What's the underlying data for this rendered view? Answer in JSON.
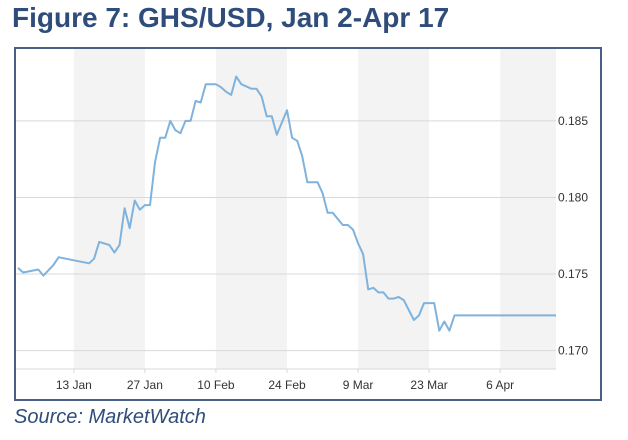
{
  "figure": {
    "title": "Figure 7: GHS/USD, Jan 2-Apr 17",
    "source": "Source: MarketWatch"
  },
  "colors": {
    "title": "#2f4d7a",
    "frame": "#4a5f86",
    "line": "#7fb3dd",
    "band": "#f3f3f3",
    "grid": "#d8d8d8",
    "tick_text": "#333333"
  },
  "chart_data": {
    "type": "line",
    "title": "",
    "xlabel": "",
    "ylabel": "",
    "x_ticks": [
      "13 Jan",
      "27 Jan",
      "10 Feb",
      "24 Feb",
      "9 Mar",
      "23 Mar",
      "6 Apr"
    ],
    "y_ticks": [
      0.17,
      0.175,
      0.18,
      0.185
    ],
    "ylim": [
      0.1688,
      0.1895
    ],
    "xlim": [
      "2020-01-02",
      "2020-04-17"
    ],
    "grid": true,
    "legend": "none",
    "series": [
      {
        "x": [
          "2020-01-02",
          "2020-01-03",
          "2020-01-06",
          "2020-01-07",
          "2020-01-09",
          "2020-01-10",
          "2020-01-13",
          "2020-01-16",
          "2020-01-17",
          "2020-01-18",
          "2020-01-20",
          "2020-01-21",
          "2020-01-22",
          "2020-01-23",
          "2020-01-24",
          "2020-01-25",
          "2020-01-26",
          "2020-01-27",
          "2020-01-28",
          "2020-01-29",
          "2020-01-30",
          "2020-01-31",
          "2020-02-01",
          "2020-02-02",
          "2020-02-03",
          "2020-02-04",
          "2020-02-05",
          "2020-02-06",
          "2020-02-07",
          "2020-02-08",
          "2020-02-10",
          "2020-02-11",
          "2020-02-12",
          "2020-02-13",
          "2020-02-14",
          "2020-02-15",
          "2020-02-17",
          "2020-02-18",
          "2020-02-19",
          "2020-02-20",
          "2020-02-21",
          "2020-02-22",
          "2020-02-24",
          "2020-02-25",
          "2020-02-26",
          "2020-02-27",
          "2020-02-28",
          "2020-03-01",
          "2020-03-02",
          "2020-03-03",
          "2020-03-04",
          "2020-03-06",
          "2020-03-07",
          "2020-03-08",
          "2020-03-09",
          "2020-03-10",
          "2020-03-11",
          "2020-03-12",
          "2020-03-13",
          "2020-03-14",
          "2020-03-15",
          "2020-03-16",
          "2020-03-17",
          "2020-03-18",
          "2020-03-20",
          "2020-03-21",
          "2020-03-22",
          "2020-03-23",
          "2020-03-24",
          "2020-03-25",
          "2020-03-26",
          "2020-03-27",
          "2020-03-28",
          "2020-03-29",
          "2020-03-31",
          "2020-04-01",
          "2020-04-02",
          "2020-04-03",
          "2020-04-04",
          "2020-04-06",
          "2020-04-07",
          "2020-04-08",
          "2020-04-10",
          "2020-04-11",
          "2020-04-12",
          "2020-04-13",
          "2020-04-14",
          "2020-04-15",
          "2020-04-16",
          "2020-04-17"
        ],
        "y": [
          0.1754,
          0.1751,
          0.1753,
          0.1749,
          0.1756,
          0.1761,
          0.1759,
          0.1757,
          0.176,
          0.1771,
          0.1769,
          0.1764,
          0.1769,
          0.1793,
          0.178,
          0.1798,
          0.1792,
          0.1795,
          0.1795,
          0.1823,
          0.1839,
          0.1839,
          0.185,
          0.1844,
          0.1842,
          0.185,
          0.185,
          0.1863,
          0.1862,
          0.1874,
          0.1874,
          0.1872,
          0.1869,
          0.1867,
          0.1879,
          0.1874,
          0.1871,
          0.1871,
          0.1866,
          0.1853,
          0.1853,
          0.1841,
          0.1857,
          0.1839,
          0.1837,
          0.1827,
          0.181,
          0.181,
          0.1803,
          0.179,
          0.179,
          0.1782,
          0.1782,
          0.1779,
          0.177,
          0.1763,
          0.174,
          0.1741,
          0.1738,
          0.1738,
          0.1734,
          0.1734,
          0.1735,
          0.1733,
          0.172,
          0.1723,
          0.1731,
          0.1731,
          0.1731,
          0.1713,
          0.1719,
          0.1713,
          0.1723,
          0.1723,
          0.1723,
          0.1723,
          0.1723,
          0.1723,
          0.1723,
          0.1723,
          0.1723,
          0.1723,
          0.1723,
          0.1723,
          0.1723,
          0.1723,
          0.1723,
          0.1723,
          0.1723,
          0.1723
        ]
      }
    ]
  }
}
